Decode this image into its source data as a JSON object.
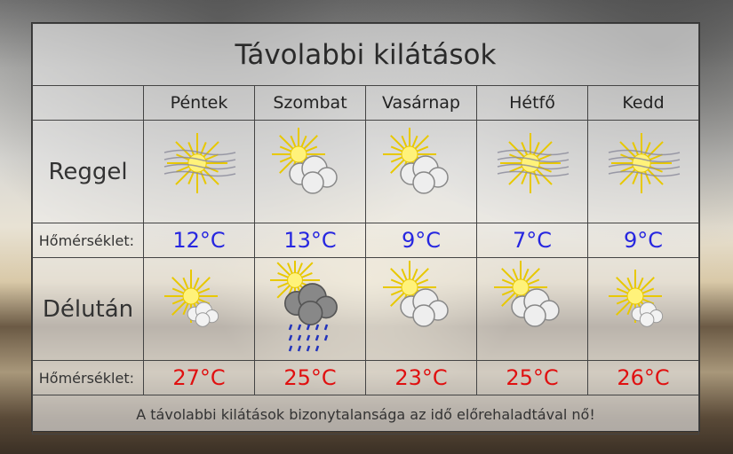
{
  "title": "Távolabbi kilátások",
  "days": [
    "Péntek",
    "Szombat",
    "Vasárnap",
    "Hétfő",
    "Kedd"
  ],
  "morning": {
    "label": "Reggel",
    "temp_label": "Hőmérséklet:",
    "icons": [
      "sun-fog-icon",
      "sun-cloud-icon",
      "sun-cloud-icon",
      "sun-fog-icon",
      "sun-fog-icon"
    ],
    "temps": [
      "12°C",
      "13°C",
      "9°C",
      "7°C",
      "9°C"
    ]
  },
  "afternoon": {
    "label": "Délután",
    "temp_label": "Hőmérséklet:",
    "icons": [
      "sun-small-cloud-icon",
      "sun-rain-icon",
      "sun-cloud-icon",
      "sun-cloud-icon",
      "sun-small-cloud-icon"
    ],
    "temps": [
      "27°C",
      "25°C",
      "23°C",
      "25°C",
      "26°C"
    ]
  },
  "footer": "A távolabbi kilátások bizonytalansága az idő előrehaladtával nő!",
  "colors": {
    "morning_temp": "#2626e0",
    "afternoon_temp": "#e01010"
  }
}
